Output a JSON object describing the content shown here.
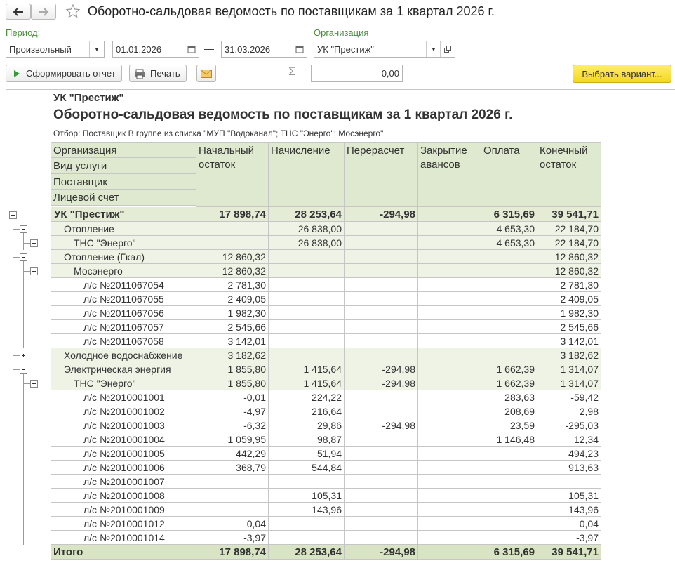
{
  "header": {
    "title": "Оборотно-сальдовая ведомость по поставщикам за 1 квартал 2026 г."
  },
  "form": {
    "period_label": "Период:",
    "period_type": "Произвольный",
    "date_from": "01.01.2026",
    "dash": "—",
    "date_to": "31.03.2026",
    "org_label": "Организация",
    "org": "УК \"Престиж\"",
    "generate": "Сформировать отчет",
    "print": "Печать",
    "sum_symbol": "Σ",
    "sum_value": "0,00",
    "choose_variant": "Выбрать вариант..."
  },
  "report": {
    "org": "УК \"Престиж\"",
    "title": "Оборотно-сальдовая ведомость по поставщикам за 1 квартал 2026 г.",
    "filter": "Отбор: Поставщик В группе из списка \"МУП \"Водоканал\"; ТНС \"Энерго\"; Мосэнерго\"",
    "grouping": [
      "Организация",
      "Вид услуги",
      "Поставщик",
      "Лицевой счет"
    ],
    "columns": [
      "Начальный остаток",
      "Начисление",
      "Перерасчет",
      "Закрытие авансов",
      "Оплата",
      "Конечный остаток"
    ],
    "tree": {
      "label": "УК \"Престиж\"",
      "values": [
        "17 898,74",
        "28 253,64",
        "-294,98",
        null,
        "6 315,69",
        "39 541,71"
      ],
      "children": [
        {
          "label": "Отопление",
          "values": [
            null,
            "26 838,00",
            null,
            null,
            "4 653,30",
            "22 184,70"
          ],
          "children": [
            {
              "label": "ТНС \"Энерго\"",
              "values": [
                null,
                "26 838,00",
                null,
                null,
                "4 653,30",
                "22 184,70"
              ],
              "collapsed": true
            }
          ]
        },
        {
          "label": "Отопление (Гкал)",
          "values": [
            "12 860,32",
            null,
            null,
            null,
            null,
            "12 860,32"
          ],
          "children": [
            {
              "label": "Мосэнерго",
              "values": [
                "12 860,32",
                null,
                null,
                null,
                null,
                "12 860,32"
              ],
              "children": [
                {
                  "label": "л/с №2011067054",
                  "values": [
                    "2 781,30",
                    null,
                    null,
                    null,
                    null,
                    "2 781,30"
                  ]
                },
                {
                  "label": "л/с №2011067055",
                  "values": [
                    "2 409,05",
                    null,
                    null,
                    null,
                    null,
                    "2 409,05"
                  ]
                },
                {
                  "label": "л/с №2011067056",
                  "values": [
                    "1 982,30",
                    null,
                    null,
                    null,
                    null,
                    "1 982,30"
                  ]
                },
                {
                  "label": "л/с №2011067057",
                  "values": [
                    "2 545,66",
                    null,
                    null,
                    null,
                    null,
                    "2 545,66"
                  ]
                },
                {
                  "label": "л/с №2011067058",
                  "values": [
                    "3 142,01",
                    null,
                    null,
                    null,
                    null,
                    "3 142,01"
                  ]
                }
              ]
            }
          ]
        },
        {
          "label": "Холодное водоснабжение",
          "values": [
            "3 182,62",
            null,
            null,
            null,
            null,
            "3 182,62"
          ],
          "collapsed": true
        },
        {
          "label": "Электрическая энергия",
          "values": [
            "1 855,80",
            "1 415,64",
            "-294,98",
            null,
            "1 662,39",
            "1 314,07"
          ],
          "children": [
            {
              "label": "ТНС \"Энерго\"",
              "values": [
                "1 855,80",
                "1 415,64",
                "-294,98",
                null,
                "1 662,39",
                "1 314,07"
              ],
              "children": [
                {
                  "label": "л/с №2010001001",
                  "values": [
                    "-0,01",
                    "224,22",
                    null,
                    null,
                    "283,63",
                    "-59,42"
                  ]
                },
                {
                  "label": "л/с №2010001002",
                  "values": [
                    "-4,97",
                    "216,64",
                    null,
                    null,
                    "208,69",
                    "2,98"
                  ]
                },
                {
                  "label": "л/с №2010001003",
                  "values": [
                    "-6,32",
                    "29,86",
                    "-294,98",
                    null,
                    "23,59",
                    "-295,03"
                  ]
                },
                {
                  "label": "л/с №2010001004",
                  "values": [
                    "1 059,95",
                    "98,87",
                    null,
                    null,
                    "1 146,48",
                    "12,34"
                  ]
                },
                {
                  "label": "л/с №2010001005",
                  "values": [
                    "442,29",
                    "51,94",
                    null,
                    null,
                    null,
                    "494,23"
                  ]
                },
                {
                  "label": "л/с №2010001006",
                  "values": [
                    "368,79",
                    "544,84",
                    null,
                    null,
                    null,
                    "913,63"
                  ]
                },
                {
                  "label": "л/с №2010001007",
                  "values": [
                    null,
                    null,
                    null,
                    null,
                    null,
                    null
                  ]
                },
                {
                  "label": "л/с №2010001008",
                  "values": [
                    null,
                    "105,31",
                    null,
                    null,
                    null,
                    "105,31"
                  ]
                },
                {
                  "label": "л/с №2010001009",
                  "values": [
                    null,
                    "143,96",
                    null,
                    null,
                    null,
                    "143,96"
                  ]
                },
                {
                  "label": "л/с №2010001012",
                  "values": [
                    "0,04",
                    null,
                    null,
                    null,
                    null,
                    "0,04"
                  ]
                },
                {
                  "label": "л/с №2010001014",
                  "values": [
                    "-3,97",
                    null,
                    null,
                    null,
                    null,
                    "-3,97"
                  ]
                }
              ]
            }
          ]
        }
      ]
    },
    "total": {
      "label": "Итого",
      "values": [
        "17 898,74",
        "28 253,64",
        "-294,98",
        null,
        "6 315,69",
        "39 541,71"
      ]
    }
  }
}
